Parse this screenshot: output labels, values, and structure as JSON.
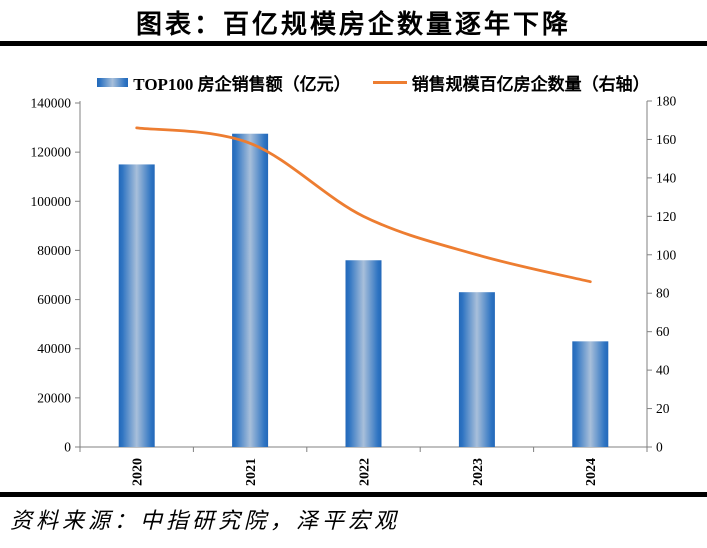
{
  "title": "图表：百亿规模房企数量逐年下降",
  "source": "资料来源：中指研究院，泽平宏观",
  "colors": {
    "bar_edge": "#2368B9",
    "bar_mid": "#A8BFDA",
    "line": "#ED7D31",
    "axis": "#808080",
    "rule": "#000000",
    "text": "#000000"
  },
  "chart_data": {
    "type": "bar",
    "subtype": "bar+line combo, dual axis",
    "title": "图表：百亿规模房企数量逐年下降",
    "categories": [
      "2020",
      "2021",
      "2022",
      "2023",
      "2024"
    ],
    "series": [
      {
        "name": "TOP100 房企销售额（亿元）",
        "type": "bar",
        "axis": "left",
        "values": [
          115000,
          127500,
          76000,
          63000,
          43000
        ]
      },
      {
        "name": "销售规模百亿房企数量（右轴）",
        "type": "line",
        "axis": "right",
        "smoothed": true,
        "values": [
          166,
          158,
          120,
          100,
          86
        ]
      }
    ],
    "left_axis": {
      "min": 0,
      "max": 140000,
      "step": 20000
    },
    "right_axis": {
      "min": 0,
      "max": 180,
      "step": 20
    },
    "legend_position": "top",
    "grid": false
  }
}
